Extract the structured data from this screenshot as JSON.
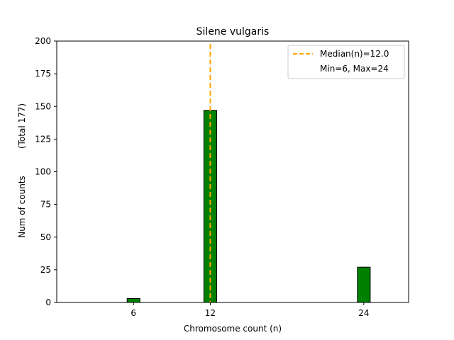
{
  "chart_data": {
    "type": "bar",
    "title": "Silene vulgaris",
    "xlabel": "Chromosome count (n)",
    "ylabel": "Num of counts",
    "ylabel_secondary": "(Total 177)",
    "xlim": [
      0,
      27.5
    ],
    "ylim": [
      0,
      200
    ],
    "xticks": [
      6,
      12,
      24
    ],
    "yticks": [
      0,
      25,
      50,
      75,
      100,
      125,
      150,
      175,
      200
    ],
    "bin_width": 1,
    "bars": [
      {
        "x": 6,
        "value": 3
      },
      {
        "x": 12,
        "value": 147
      },
      {
        "x": 24,
        "value": 27
      }
    ],
    "bar_color": "#008000",
    "bar_edge_color": "#000000",
    "median": {
      "value": 12.0,
      "color": "#ffa500"
    },
    "legend": {
      "position": "top-right",
      "entries": [
        "Median(n)=12.0",
        "Min=6, Max=24"
      ]
    },
    "grid": false
  }
}
